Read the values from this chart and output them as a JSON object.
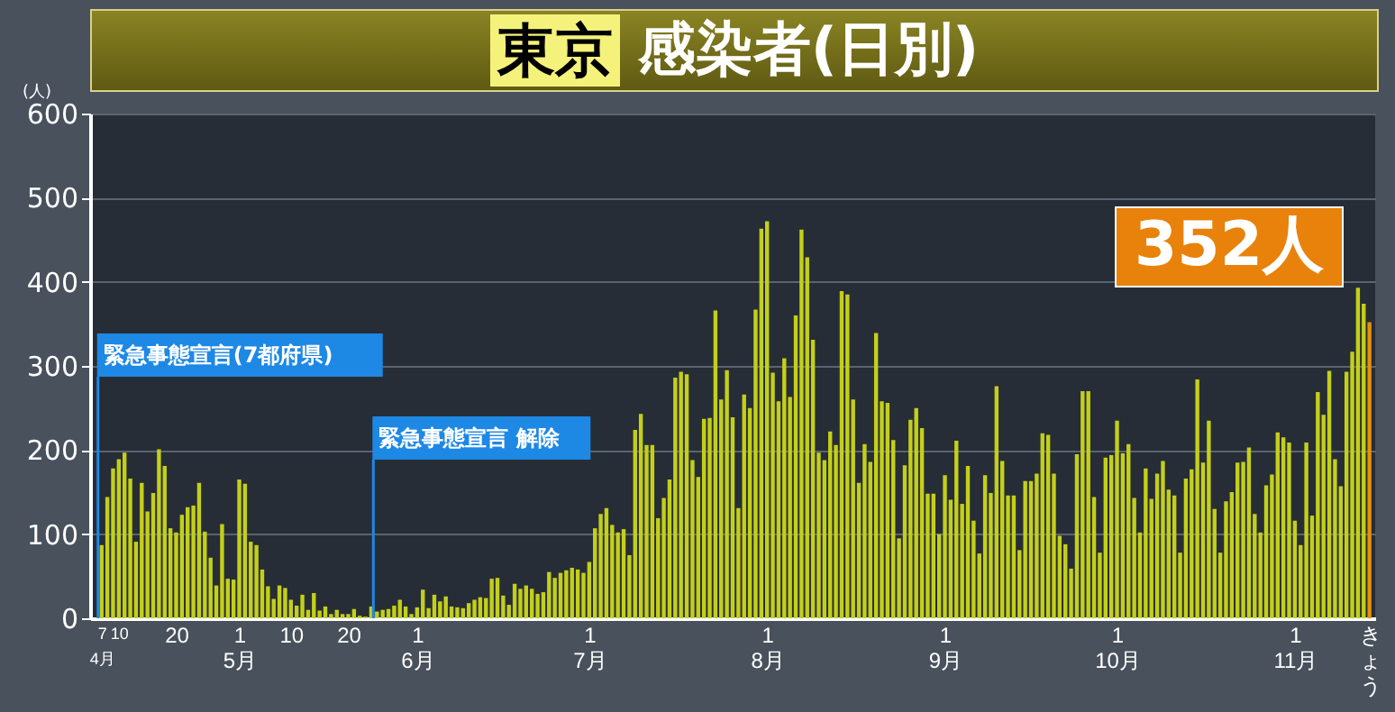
{
  "chart_data": {
    "type": "bar",
    "title": "東京 感染者(日別)",
    "ylabel": "(人)",
    "x": [
      "--04-07",
      "--04-08",
      "--04-09",
      "--04-10",
      "--04-11",
      "--04-12",
      "--04-13",
      "--04-14",
      "--04-15",
      "--04-16",
      "--04-17",
      "--04-18",
      "--04-19",
      "--04-20",
      "--04-21",
      "--04-22",
      "--04-23",
      "--04-24",
      "--04-25",
      "--04-26",
      "--04-27",
      "--04-28",
      "--04-29",
      "--04-30",
      "--05-01",
      "--05-02",
      "--05-03",
      "--05-04",
      "--05-05",
      "--05-06",
      "--05-07",
      "--05-08",
      "--05-09",
      "--05-10",
      "--05-11",
      "--05-12",
      "--05-13",
      "--05-14",
      "--05-15",
      "--05-16",
      "--05-17",
      "--05-18",
      "--05-19",
      "--05-20",
      "--05-21",
      "--05-22",
      "--05-23",
      "--05-24",
      "--05-25",
      "--05-26",
      "--05-27",
      "--05-28",
      "--05-29",
      "--05-30",
      "--05-31",
      "--06-01",
      "--06-02",
      "--06-03",
      "--06-04",
      "--06-05",
      "--06-06",
      "--06-07",
      "--06-08",
      "--06-09",
      "--06-10",
      "--06-11",
      "--06-12",
      "--06-13",
      "--06-14",
      "--06-15",
      "--06-16",
      "--06-17",
      "--06-18",
      "--06-19",
      "--06-20",
      "--06-21",
      "--06-22",
      "--06-23",
      "--06-24",
      "--06-25",
      "--06-26",
      "--06-27",
      "--06-28",
      "--06-29",
      "--06-30",
      "--07-01",
      "--07-02",
      "--07-03",
      "--07-04",
      "--07-05",
      "--07-06",
      "--07-07",
      "--07-08",
      "--07-09",
      "--07-10",
      "--07-11",
      "--07-12",
      "--07-13",
      "--07-14",
      "--07-15",
      "--07-16",
      "--07-17",
      "--07-18",
      "--07-19",
      "--07-20",
      "--07-21",
      "--07-22",
      "--07-23",
      "--07-24",
      "--07-25",
      "--07-26",
      "--07-27",
      "--07-28",
      "--07-29",
      "--07-30",
      "--07-31",
      "--08-01",
      "--08-02",
      "--08-03",
      "--08-04",
      "--08-05",
      "--08-06",
      "--08-07",
      "--08-08",
      "--08-09",
      "--08-10",
      "--08-11",
      "--08-12",
      "--08-13",
      "--08-14",
      "--08-15",
      "--08-16",
      "--08-17",
      "--08-18",
      "--08-19",
      "--08-20",
      "--08-21",
      "--08-22",
      "--08-23",
      "--08-24",
      "--08-25",
      "--08-26",
      "--08-27",
      "--08-28",
      "--08-29",
      "--08-30",
      "--08-31",
      "--09-01",
      "--09-02",
      "--09-03",
      "--09-04",
      "--09-05",
      "--09-06",
      "--09-07",
      "--09-08",
      "--09-09",
      "--09-10",
      "--09-11",
      "--09-12",
      "--09-13",
      "--09-14",
      "--09-15",
      "--09-16",
      "--09-17",
      "--09-18",
      "--09-19",
      "--09-20",
      "--09-21",
      "--09-22",
      "--09-23",
      "--09-24",
      "--09-25",
      "--09-26",
      "--09-27",
      "--09-28",
      "--09-29",
      "--09-30",
      "--10-01",
      "--10-02",
      "--10-03",
      "--10-04",
      "--10-05",
      "--10-06",
      "--10-07",
      "--10-08",
      "--10-09",
      "--10-10",
      "--10-11",
      "--10-12",
      "--10-13",
      "--10-14",
      "--10-15",
      "--10-16",
      "--10-17",
      "--10-18",
      "--10-19",
      "--10-20",
      "--10-21",
      "--10-22",
      "--10-23",
      "--10-24",
      "--10-25",
      "--10-26",
      "--10-27",
      "--10-28",
      "--10-29",
      "--10-30",
      "--10-31",
      "--11-01",
      "--11-02",
      "--11-03",
      "--11-04",
      "--11-05",
      "--11-06",
      "--11-07",
      "--11-08",
      "--11-09",
      "--11-10",
      "--11-11",
      "--11-12",
      "--11-13",
      "--11-14"
    ],
    "values": [
      87,
      144,
      178,
      189,
      197,
      166,
      91,
      161,
      127,
      149,
      201,
      181,
      107,
      102,
      123,
      132,
      134,
      161,
      103,
      72,
      39,
      112,
      47,
      46,
      165,
      160,
      91,
      87,
      58,
      38,
      23,
      39,
      36,
      22,
      15,
      28,
      10,
      30,
      9,
      14,
      5,
      10,
      5,
      5,
      11,
      3,
      2,
      14,
      8,
      10,
      11,
      15,
      22,
      14,
      5,
      13,
      34,
      12,
      28,
      20,
      26,
      14,
      13,
      12,
      18,
      22,
      25,
      24,
      47,
      48,
      27,
      16,
      41,
      35,
      39,
      35,
      29,
      31,
      55,
      48,
      54,
      57,
      60,
      58,
      54,
      67,
      107,
      124,
      131,
      111,
      102,
      106,
      75,
      224,
      243,
      206,
      206,
      119,
      143,
      165,
      286,
      293,
      290,
      188,
      168,
      237,
      238,
      366,
      260,
      295,
      239,
      131,
      266,
      250,
      367,
      463,
      472,
      292,
      258,
      309,
      263,
      360,
      462,
      429,
      331,
      197,
      188,
      222,
      206,
      389,
      385,
      260,
      161,
      207,
      186,
      339,
      258,
      256,
      212,
      95,
      182,
      236,
      250,
      226,
      148,
      148,
      100,
      170,
      141,
      211,
      136,
      181,
      116,
      77,
      170,
      149,
      276,
      187,
      146,
      146,
      81,
      163,
      163,
      172,
      220,
      218,
      172,
      98,
      88,
      59,
      195,
      270,
      270,
      144,
      78,
      191,
      194,
      235,
      196,
      207,
      143,
      102,
      178,
      142,
      172,
      187,
      153,
      146,
      78,
      166,
      177,
      284,
      185,
      235,
      130,
      78,
      139,
      150,
      185,
      186,
      203,
      124,
      102,
      158,
      171,
      221,
      215,
      209,
      116,
      87,
      209,
      122,
      269,
      242,
      294,
      189,
      157,
      293,
      317,
      393,
      374,
      352
    ],
    "colors": [
      "#c4cf1a",
      "#c4cf1a",
      "#c4cf1a",
      "#c4cf1a",
      "#c4cf1a",
      "#c4cf1a",
      "#c4cf1a",
      "#c4cf1a",
      "#c4cf1a",
      "#c4cf1a",
      "#c4cf1a",
      "#c4cf1a",
      "#c4cf1a",
      "#c4cf1a",
      "#c4cf1a",
      "#c4cf1a",
      "#c4cf1a",
      "#c4cf1a",
      "#c4cf1a",
      "#c4cf1a",
      "#c4cf1a",
      "#c4cf1a",
      "#c4cf1a",
      "#c4cf1a",
      "#c4cf1a",
      "#c4cf1a",
      "#c4cf1a",
      "#c4cf1a",
      "#c4cf1a",
      "#c4cf1a",
      "#c4cf1a",
      "#c4cf1a",
      "#c4cf1a",
      "#c4cf1a",
      "#c4cf1a",
      "#c4cf1a",
      "#c4cf1a",
      "#c4cf1a",
      "#c4cf1a",
      "#c4cf1a",
      "#c4cf1a",
      "#c4cf1a",
      "#c4cf1a",
      "#c4cf1a",
      "#c4cf1a",
      "#c4cf1a",
      "#c4cf1a",
      "#c4cf1a",
      "#c4cf1a",
      "#c4cf1a",
      "#c4cf1a",
      "#c4cf1a",
      "#c4cf1a",
      "#c4cf1a",
      "#c4cf1a",
      "#c4cf1a",
      "#c4cf1a",
      "#c4cf1a",
      "#c4cf1a",
      "#c4cf1a",
      "#c4cf1a",
      "#c4cf1a",
      "#c4cf1a",
      "#c4cf1a",
      "#c4cf1a",
      "#c4cf1a",
      "#c4cf1a",
      "#c4cf1a",
      "#c4cf1a",
      "#c4cf1a",
      "#c4cf1a",
      "#c4cf1a",
      "#c4cf1a",
      "#c4cf1a",
      "#c4cf1a",
      "#c4cf1a",
      "#c4cf1a",
      "#c4cf1a",
      "#c4cf1a",
      "#c4cf1a",
      "#c4cf1a",
      "#c4cf1a",
      "#c4cf1a",
      "#c4cf1a",
      "#c4cf1a",
      "#c4cf1a",
      "#c4cf1a",
      "#c4cf1a",
      "#c4cf1a",
      "#c4cf1a",
      "#c4cf1a",
      "#c4cf1a",
      "#c4cf1a",
      "#c4cf1a",
      "#c4cf1a",
      "#c4cf1a",
      "#c4cf1a",
      "#c4cf1a",
      "#c4cf1a",
      "#c4cf1a",
      "#c4cf1a",
      "#c4cf1a",
      "#c4cf1a",
      "#c4cf1a",
      "#c4cf1a",
      "#c4cf1a",
      "#c4cf1a",
      "#c4cf1a",
      "#c4cf1a",
      "#c4cf1a",
      "#c4cf1a",
      "#c4cf1a",
      "#c4cf1a",
      "#c4cf1a",
      "#c4cf1a",
      "#c4cf1a",
      "#c4cf1a",
      "#c4cf1a",
      "#c4cf1a",
      "#c4cf1a",
      "#c4cf1a",
      "#c4cf1a",
      "#c4cf1a",
      "#c4cf1a",
      "#c4cf1a",
      "#c4cf1a",
      "#c4cf1a",
      "#c4cf1a",
      "#c4cf1a",
      "#c4cf1a",
      "#c4cf1a",
      "#c4cf1a",
      "#c4cf1a",
      "#c4cf1a",
      "#c4cf1a",
      "#c4cf1a",
      "#c4cf1a",
      "#c4cf1a",
      "#c4cf1a",
      "#c4cf1a",
      "#c4cf1a",
      "#c4cf1a",
      "#c4cf1a",
      "#c4cf1a",
      "#c4cf1a",
      "#c4cf1a",
      "#c4cf1a",
      "#c4cf1a",
      "#c4cf1a",
      "#c4cf1a",
      "#c4cf1a",
      "#c4cf1a",
      "#c4cf1a",
      "#c4cf1a",
      "#c4cf1a",
      "#c4cf1a",
      "#c4cf1a",
      "#c4cf1a",
      "#c4cf1a",
      "#c4cf1a",
      "#c4cf1a",
      "#c4cf1a",
      "#c4cf1a",
      "#c4cf1a",
      "#c4cf1a",
      "#c4cf1a",
      "#c4cf1a",
      "#c4cf1a",
      "#c4cf1a",
      "#c4cf1a",
      "#c4cf1a",
      "#c4cf1a",
      "#c4cf1a",
      "#c4cf1a",
      "#c4cf1a",
      "#c4cf1a",
      "#c4cf1a",
      "#c4cf1a",
      "#c4cf1a",
      "#c4cf1a",
      "#c4cf1a",
      "#c4cf1a",
      "#c4cf1a",
      "#c4cf1a",
      "#c4cf1a",
      "#c4cf1a",
      "#c4cf1a",
      "#c4cf1a",
      "#c4cf1a",
      "#c4cf1a",
      "#c4cf1a",
      "#c4cf1a",
      "#c4cf1a",
      "#c4cf1a",
      "#c4cf1a",
      "#c4cf1a",
      "#c4cf1a",
      "#c4cf1a",
      "#c4cf1a",
      "#c4cf1a",
      "#c4cf1a",
      "#c4cf1a",
      "#c4cf1a",
      "#c4cf1a",
      "#c4cf1a",
      "#c4cf1a",
      "#c4cf1a",
      "#c4cf1a",
      "#c4cf1a",
      "#c4cf1a",
      "#c4cf1a",
      "#c4cf1a",
      "#c4cf1a",
      "#c4cf1a",
      "#c4cf1a",
      "#c4cf1a",
      "#c4cf1a",
      "#c4cf1a",
      "#c4cf1a",
      "#c4cf1a",
      "#c4cf1a",
      "#e8900a"
    ],
    "xlim": [
      "--04-05",
      "--11-15"
    ],
    "xticks": [
      {
        "value": "--04-07",
        "label": "7\n4月"
      },
      {
        "value": "--04-10",
        "label": "10"
      },
      {
        "value": "--04-20",
        "label": "20"
      },
      {
        "value": "--05-01",
        "label": "1\n5月"
      },
      {
        "value": "--05-10",
        "label": "10"
      },
      {
        "value": "--05-20",
        "label": "20"
      },
      {
        "value": "--06-01",
        "label": "1\n6月"
      },
      {
        "value": "--07-01",
        "label": "1\n7月"
      },
      {
        "value": "--08-01",
        "label": "1\n8月"
      },
      {
        "value": "--09-01",
        "label": "1\n9月"
      },
      {
        "value": "--10-01",
        "label": "1\n10月"
      },
      {
        "value": "--11-01",
        "label": "1\n11月"
      },
      {
        "value": "--11-14",
        "label": "きょう"
      }
    ],
    "ylim": [
      0,
      600
    ],
    "yticks": [
      0,
      100,
      200,
      300,
      400,
      500,
      600
    ],
    "grid": "y",
    "ref_lines": [
      {
        "axis": "x",
        "value": "--04-07",
        "label": "緊急事態宣言(7都府県)",
        "color": "#1e88e5"
      },
      {
        "axis": "x",
        "value": "--05-25",
        "label": "緊急事態宣言 解除",
        "color": "#1e88e5"
      }
    ],
    "annotations": [
      "352人"
    ]
  }
}
